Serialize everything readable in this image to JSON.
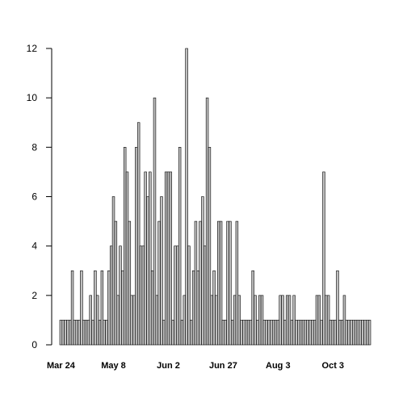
{
  "chart_data": {
    "type": "bar",
    "title": "",
    "xlabel": "",
    "ylabel": "",
    "ylim": [
      0,
      12
    ],
    "yticks": [
      0,
      2,
      4,
      6,
      8,
      10,
      12
    ],
    "xtick_labels": [
      "Mar 24",
      "May 8",
      "Jun 2",
      "Jun 27",
      "Aug 3",
      "Oct 3"
    ],
    "xtick_index": [
      0,
      23,
      47,
      71,
      95,
      119
    ],
    "bar_fill": "#bfbfbf",
    "bar_stroke": "#000000",
    "grid": false,
    "values": [
      1,
      1,
      1,
      1,
      1,
      3,
      1,
      1,
      1,
      3,
      1,
      1,
      1,
      2,
      1,
      3,
      2,
      1,
      3,
      1,
      1,
      3,
      4,
      6,
      5,
      2,
      4,
      3,
      8,
      7,
      5,
      2,
      2,
      8,
      9,
      4,
      4,
      7,
      6,
      7,
      3,
      10,
      2,
      5,
      6,
      1,
      7,
      7,
      7,
      1,
      4,
      4,
      8,
      1,
      2,
      12,
      4,
      1,
      3,
      5,
      3,
      5,
      6,
      4,
      10,
      8,
      2,
      3,
      2,
      5,
      5,
      1,
      1,
      5,
      5,
      1,
      2,
      5,
      2,
      1,
      1,
      1,
      1,
      1,
      3,
      2,
      1,
      2,
      2,
      1,
      1,
      1,
      1,
      1,
      1,
      1,
      2,
      2,
      1,
      2,
      2,
      1,
      2,
      1,
      1,
      1,
      1,
      1,
      1,
      1,
      1,
      1,
      2,
      2,
      1,
      7,
      2,
      2,
      1,
      1,
      1,
      3,
      1,
      1,
      2,
      1,
      1,
      1,
      1,
      1,
      1,
      1,
      1,
      1,
      1,
      1
    ]
  }
}
